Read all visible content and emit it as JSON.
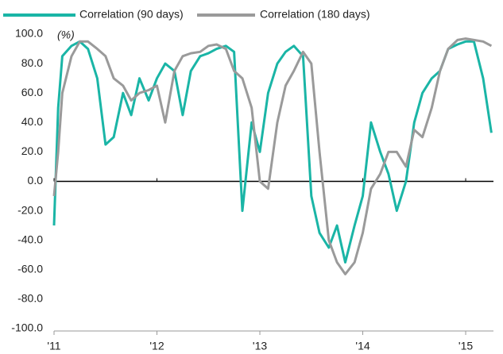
{
  "chart_data": {
    "type": "line",
    "annotation": "(%)",
    "x": [
      2011.0,
      2011.04,
      2011.08,
      2011.17,
      2011.25,
      2011.33,
      2011.42,
      2011.5,
      2011.58,
      2011.67,
      2011.75,
      2011.83,
      2011.92,
      2012.0,
      2012.08,
      2012.17,
      2012.25,
      2012.33,
      2012.42,
      2012.5,
      2012.58,
      2012.67,
      2012.75,
      2012.83,
      2012.92,
      2013.0,
      2013.08,
      2013.17,
      2013.25,
      2013.33,
      2013.42,
      2013.5,
      2013.58,
      2013.67,
      2013.75,
      2013.83,
      2013.92,
      2014.0,
      2014.08,
      2014.17,
      2014.25,
      2014.33,
      2014.42,
      2014.5,
      2014.58,
      2014.67,
      2014.75,
      2014.83,
      2014.92,
      2015.0,
      2015.08,
      2015.17,
      2015.25
    ],
    "series": [
      {
        "name": "Correlation (90 days)",
        "color": "#1ab5a6",
        "values": [
          -30,
          50,
          85,
          92,
          95,
          90,
          70,
          25,
          30,
          60,
          45,
          70,
          55,
          70,
          80,
          75,
          45,
          75,
          85,
          87,
          90,
          92,
          88,
          -20,
          40,
          20,
          60,
          80,
          88,
          92,
          85,
          -10,
          -35,
          -45,
          -30,
          -55,
          -30,
          -10,
          40,
          20,
          5,
          -20,
          0,
          40,
          60,
          70,
          75,
          90,
          93,
          95,
          95,
          70,
          33
        ]
      },
      {
        "name": "Correlation (180 days)",
        "color": "#9a9a9a",
        "values": [
          -10,
          20,
          60,
          85,
          95,
          95,
          90,
          85,
          70,
          65,
          55,
          60,
          62,
          65,
          40,
          75,
          85,
          87,
          88,
          92,
          93,
          90,
          75,
          70,
          50,
          0,
          -5,
          40,
          65,
          75,
          88,
          80,
          20,
          -40,
          -55,
          -63,
          -55,
          -35,
          -5,
          5,
          20,
          20,
          10,
          35,
          30,
          50,
          75,
          90,
          96,
          97,
          96,
          95,
          92
        ]
      }
    ],
    "xlim": [
      2011.0,
      2015.27
    ],
    "xticks": [
      {
        "value": 2011,
        "label": "'11"
      },
      {
        "value": 2012,
        "label": "'12"
      },
      {
        "value": 2013,
        "label": "'13"
      },
      {
        "value": 2014,
        "label": "'14"
      },
      {
        "value": 2015,
        "label": "'15"
      }
    ],
    "ylim": [
      -100,
      100
    ],
    "yticks": [
      {
        "value": -100,
        "label": "-100.0"
      },
      {
        "value": -80,
        "label": "-80.0"
      },
      {
        "value": -60,
        "label": "-60.0"
      },
      {
        "value": -40,
        "label": "-40.0"
      },
      {
        "value": -20,
        "label": "-20.0"
      },
      {
        "value": 0,
        "label": "0.0"
      },
      {
        "value": 20,
        "label": "20.0"
      },
      {
        "value": 40,
        "label": "40.0"
      },
      {
        "value": 60,
        "label": "60.0"
      },
      {
        "value": 80,
        "label": "80.0"
      },
      {
        "value": 100,
        "label": "100.0"
      }
    ],
    "legend": "top",
    "grid": false
  }
}
